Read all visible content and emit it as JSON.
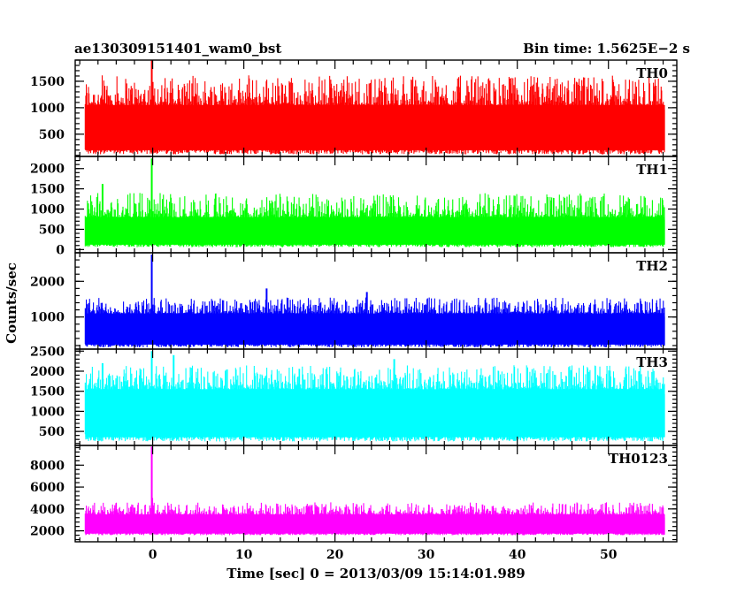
{
  "chart_data": {
    "type": "line",
    "title_left": "ae130309151401_wam0_bst",
    "title_right": "Bin time: 1.5625E−2 s",
    "xlabel": "Time [sec] 0 = 2013/03/09 15:14:01.989",
    "ylabel": "Counts/sec",
    "xlim": [
      -8.5,
      57.5
    ],
    "x_ticks": [
      0,
      10,
      20,
      30,
      40,
      50
    ],
    "x_tick_labels": [
      "0",
      "10",
      "20",
      "30",
      "40",
      "50"
    ],
    "x_range": [
      -7.4,
      56.2
    ],
    "grid": false,
    "panels": [
      {
        "name": "TH0",
        "color": "#ff0000",
        "ylim": [
          80,
          1900
        ],
        "y_ticks": [
          500,
          1000,
          1500
        ],
        "y_tick_labels": [
          "500",
          "1000",
          "1500"
        ],
        "baseline_range": [
          120,
          1050
        ],
        "spikes": [
          [
            -0.1,
            1900
          ]
        ],
        "peak_typical": 1620
      },
      {
        "name": "TH1",
        "color": "#00ff00",
        "ylim": [
          -80,
          2300
        ],
        "y_ticks": [
          0,
          500,
          1000,
          1500,
          2000
        ],
        "y_tick_labels": [
          "0",
          "500",
          "1000",
          "1500",
          "2000"
        ],
        "baseline_range": [
          60,
          800
        ],
        "spikes": [
          [
            -0.1,
            2250
          ],
          [
            -5.5,
            1620
          ]
        ],
        "peak_typical": 1400
      },
      {
        "name": "TH2",
        "color": "#0000ff",
        "ylim": [
          100,
          2800
        ],
        "y_ticks": [
          1000,
          2000
        ],
        "y_tick_labels": [
          "1000",
          "2000"
        ],
        "baseline_range": [
          150,
          1100
        ],
        "spikes": [
          [
            -0.1,
            2750
          ],
          [
            12.5,
            1800
          ],
          [
            23.5,
            1700
          ]
        ],
        "peak_typical": 1550
      },
      {
        "name": "TH3",
        "color": "#00ffff",
        "ylim": [
          150,
          2550
        ],
        "y_ticks": [
          500,
          1000,
          1500,
          2000,
          2500
        ],
        "y_tick_labels": [
          "500",
          "1000",
          "1500",
          "2000",
          "2500"
        ],
        "baseline_range": [
          250,
          1550
        ],
        "spikes": [
          [
            -0.1,
            2500
          ],
          [
            2.3,
            2400
          ],
          [
            -5.5,
            2200
          ],
          [
            26.5,
            2300
          ]
        ],
        "peak_typical": 2150
      },
      {
        "name": "TH0123",
        "color": "#ff00ff",
        "ylim": [
          1000,
          9800
        ],
        "y_ticks": [
          2000,
          4000,
          6000,
          8000
        ],
        "y_tick_labels": [
          "2000",
          "4000",
          "6000",
          "8000"
        ],
        "baseline_range": [
          1600,
          3500
        ],
        "spikes": [
          [
            -0.1,
            9700
          ],
          [
            -0.05,
            5000
          ]
        ],
        "peak_typical": 4600
      }
    ]
  }
}
